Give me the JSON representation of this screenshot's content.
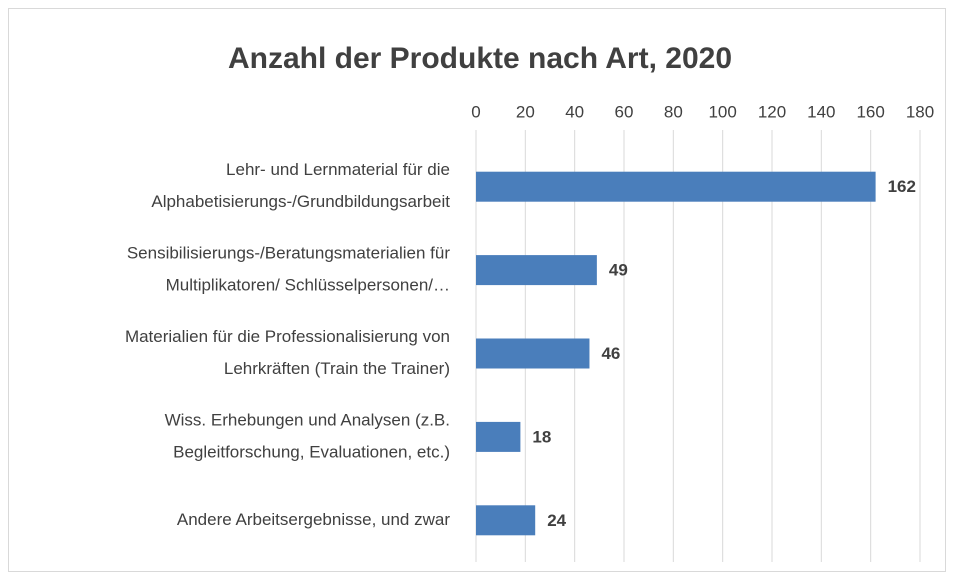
{
  "chart_data": {
    "type": "bar",
    "orientation": "horizontal",
    "title": "Anzahl der Produkte nach Art, 2020",
    "categories": [
      [
        "Lehr- und Lernmaterial für die",
        "Alphabetisierungs-/Grundbildungsarbeit"
      ],
      [
        "Sensibilisierungs-/Beratungsmaterialien für",
        "Multiplikatoren/ Schlüsselpersonen/…"
      ],
      [
        "Materialien für die Professionalisierung von",
        "Lehrkräften (Train the Trainer)"
      ],
      [
        "Wiss. Erhebungen und Analysen (z.B.",
        "Begleitforschung, Evaluationen, etc.)"
      ],
      [
        "Andere Arbeitsergebnisse, und zwar"
      ]
    ],
    "values": [
      162,
      49,
      46,
      18,
      24
    ],
    "color": "#4a7ebb",
    "xlim": [
      0,
      180
    ],
    "xticks": [
      0,
      20,
      40,
      60,
      80,
      100,
      120,
      140,
      160,
      180
    ],
    "grid": true
  }
}
